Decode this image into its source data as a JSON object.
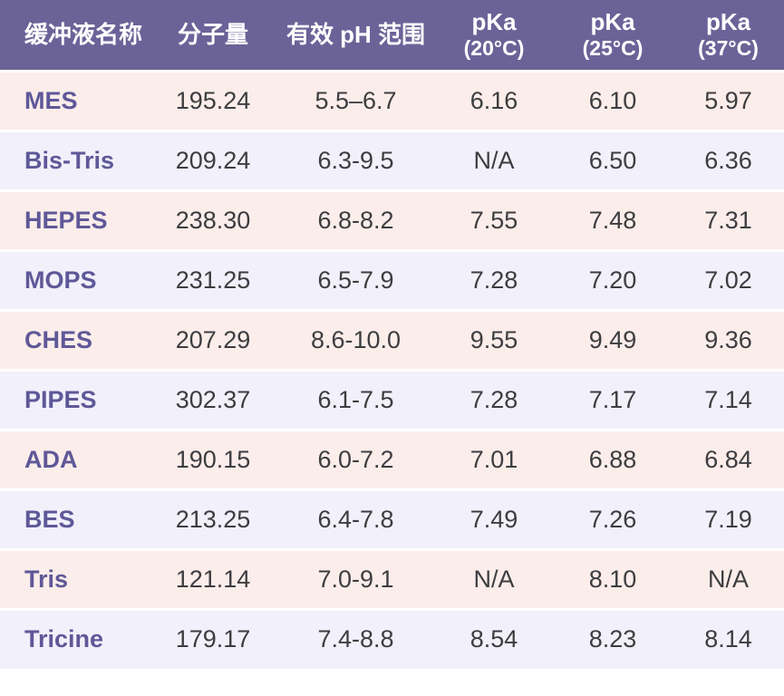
{
  "chart_data": {
    "type": "table",
    "columns": [
      {
        "label": "缓冲液名称",
        "sub": ""
      },
      {
        "label": "分子量",
        "sub": ""
      },
      {
        "label": "有效 pH 范围",
        "sub": ""
      },
      {
        "label": "pKa",
        "sub": "(20°C)"
      },
      {
        "label": "pKa",
        "sub": "(25°C)"
      },
      {
        "label": "pKa",
        "sub": "(37°C)"
      }
    ],
    "rows": [
      {
        "name": "MES",
        "mw": "195.24",
        "ph_range": "5.5–6.7",
        "pka_20c": "6.16",
        "pka_25c": "6.10",
        "pka_37c": "5.97"
      },
      {
        "name": "Bis-Tris",
        "mw": "209.24",
        "ph_range": "6.3-9.5",
        "pka_20c": "N/A",
        "pka_25c": "6.50",
        "pka_37c": "6.36"
      },
      {
        "name": "HEPES",
        "mw": "238.30",
        "ph_range": "6.8-8.2",
        "pka_20c": "7.55",
        "pka_25c": "7.48",
        "pka_37c": "7.31"
      },
      {
        "name": "MOPS",
        "mw": "231.25",
        "ph_range": "6.5-7.9",
        "pka_20c": "7.28",
        "pka_25c": "7.20",
        "pka_37c": "7.02"
      },
      {
        "name": "CHES",
        "mw": "207.29",
        "ph_range": "8.6-10.0",
        "pka_20c": "9.55",
        "pka_25c": "9.49",
        "pka_37c": "9.36"
      },
      {
        "name": "PIPES",
        "mw": "302.37",
        "ph_range": "6.1-7.5",
        "pka_20c": "7.28",
        "pka_25c": "7.17",
        "pka_37c": "7.14"
      },
      {
        "name": "ADA",
        "mw": "190.15",
        "ph_range": "6.0-7.2",
        "pka_20c": "7.01",
        "pka_25c": "6.88",
        "pka_37c": "6.84"
      },
      {
        "name": "BES",
        "mw": "213.25",
        "ph_range": "6.4-7.8",
        "pka_20c": "7.49",
        "pka_25c": "7.26",
        "pka_37c": "7.19"
      },
      {
        "name": "Tris",
        "mw": "121.14",
        "ph_range": "7.0-9.1",
        "pka_20c": "N/A",
        "pka_25c": "8.10",
        "pka_37c": "N/A"
      },
      {
        "name": "Tricine",
        "mw": "179.17",
        "ph_range": "7.4-8.8",
        "pka_20c": "8.54",
        "pka_25c": "8.23",
        "pka_37c": "8.14"
      }
    ]
  },
  "colors": {
    "header_bg": "#6B6398",
    "header_text": "#FFFFFF",
    "row_a": "#FBEDEA",
    "row_b": "#F2F0FA",
    "name_color": "#5F5898",
    "value_color": "#3D3D40",
    "divider": "#FFFFFF"
  }
}
